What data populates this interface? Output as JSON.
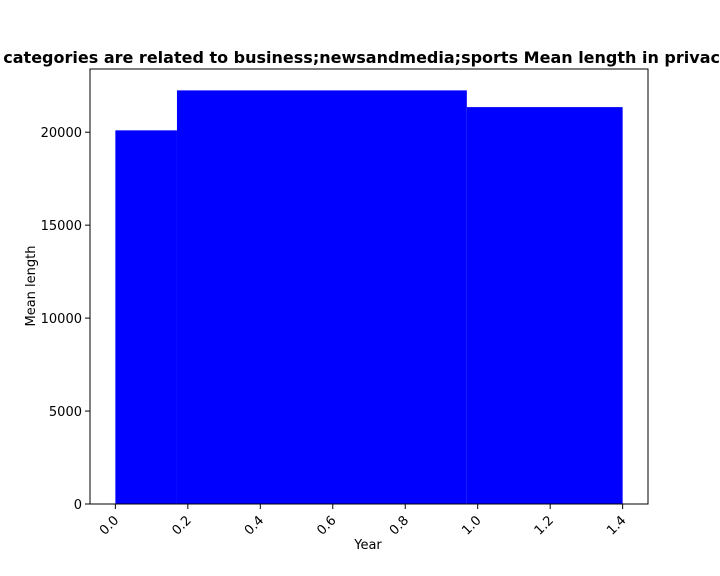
{
  "chart_data": {
    "type": "bar",
    "title": "Websites categories are related to business;newsandmedia;sports Mean length in privacy policies",
    "xlabel": "Year",
    "ylabel": "Mean length",
    "bar_color": "#0000ff",
    "bars": [
      {
        "x_start": 0.0,
        "x_end": 0.17,
        "value": 20100
      },
      {
        "x_start": 0.17,
        "x_end": 0.97,
        "value": 22250
      },
      {
        "x_start": 0.97,
        "x_end": 1.4,
        "value": 21350
      }
    ],
    "xlim": [
      -0.07,
      1.47
    ],
    "ylim": [
      0,
      23400
    ],
    "xticks": [
      "0.0",
      "0.2",
      "0.4",
      "0.6",
      "0.8",
      "1.0",
      "1.2",
      "1.4"
    ],
    "xtick_values": [
      0.0,
      0.2,
      0.4,
      0.6,
      0.8,
      1.0,
      1.2,
      1.4
    ],
    "yticks": [
      "0",
      "5000",
      "10000",
      "15000",
      "20000"
    ],
    "ytick_values": [
      0,
      5000,
      10000,
      15000,
      20000
    ],
    "xtick_rotation": 45,
    "grid": false,
    "legend": "none"
  }
}
